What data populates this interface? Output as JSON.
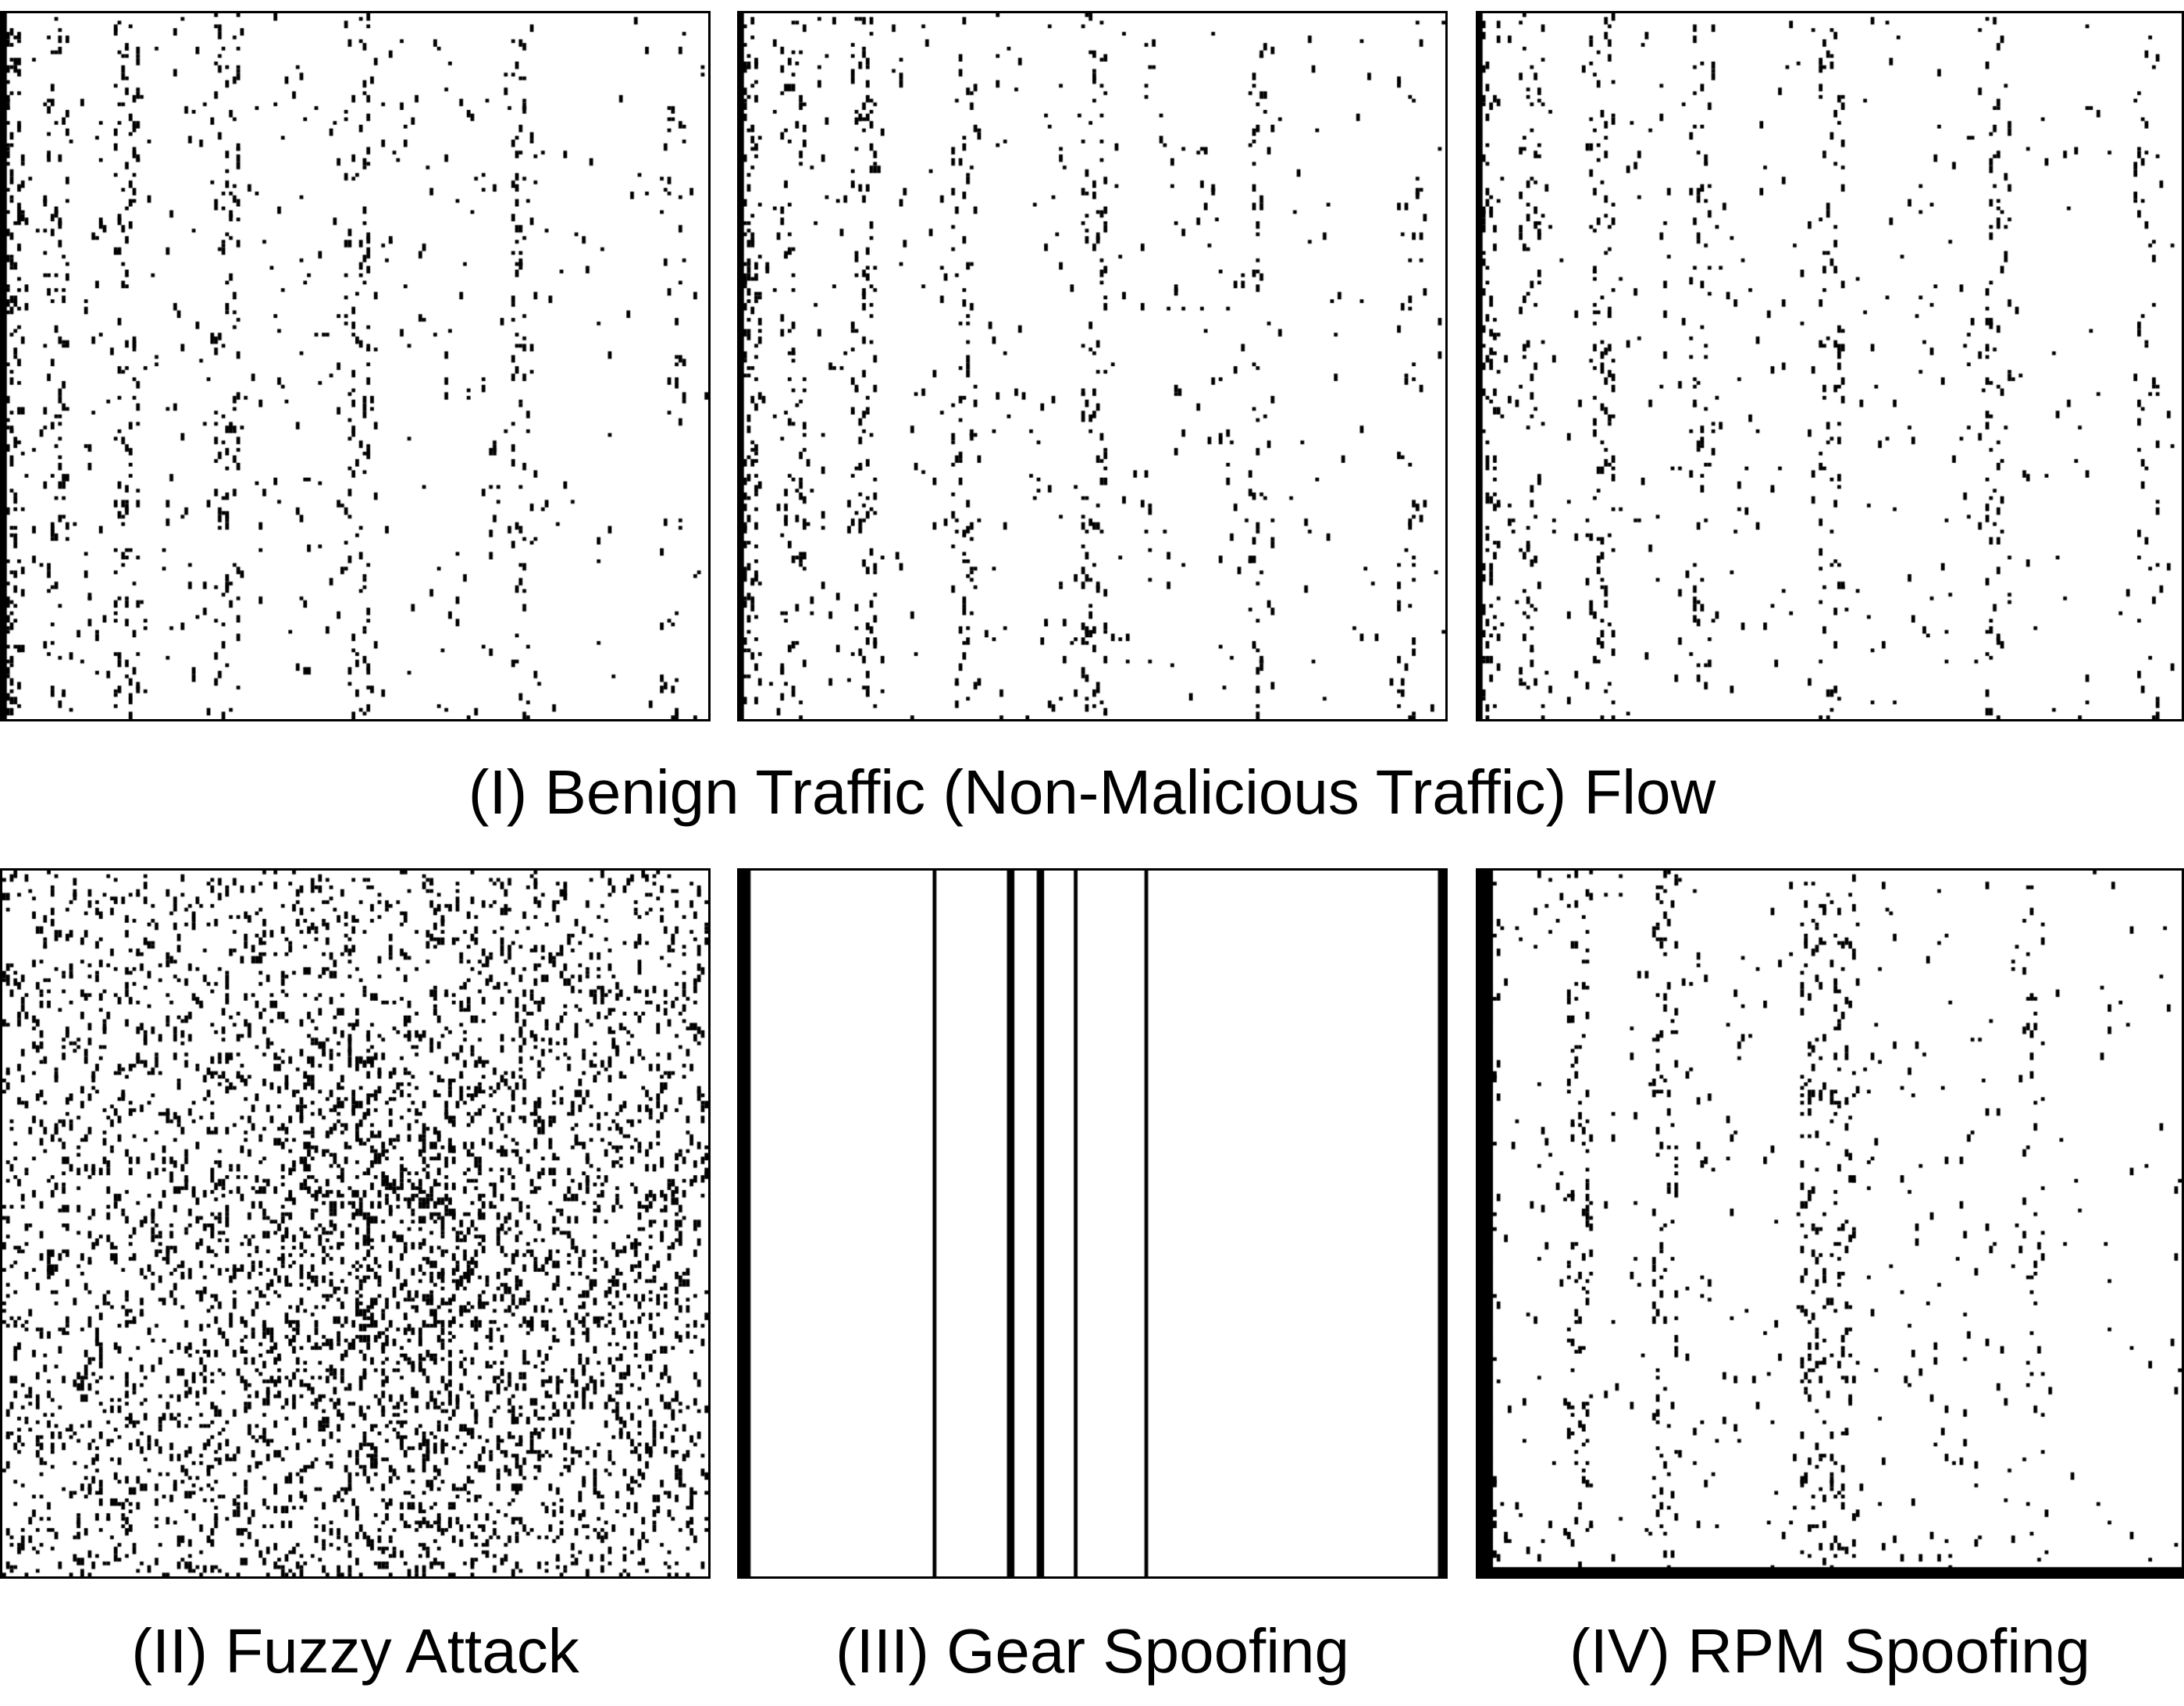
{
  "figure": {
    "row_1_caption": "(I) Benign Traffic (Non-Malicious Traffic) Flow",
    "row_2_captions": {
      "fuzzy": "(II) Fuzzy Attack",
      "gear": "(III) Gear Spoofing",
      "rpm": "(IV) RPM Spoofing"
    },
    "ink_color": "#000000",
    "background_color": "#ffffff",
    "panels": [
      {
        "id": "benign-1",
        "pattern": "benign",
        "density": 0.055,
        "left_edge_dense": true
      },
      {
        "id": "benign-2",
        "pattern": "benign",
        "density": 0.045,
        "left_edge_dense": true
      },
      {
        "id": "benign-3",
        "pattern": "benign",
        "density": 0.045,
        "left_edge_dense": true
      },
      {
        "id": "fuzzy-attack",
        "pattern": "fuzzy",
        "density": 0.12
      },
      {
        "id": "gear-spoofing",
        "pattern": "gear",
        "density": 0
      },
      {
        "id": "rpm-spoofing",
        "pattern": "rpm",
        "density": 0.05,
        "left_edge_dense": true
      }
    ]
  }
}
